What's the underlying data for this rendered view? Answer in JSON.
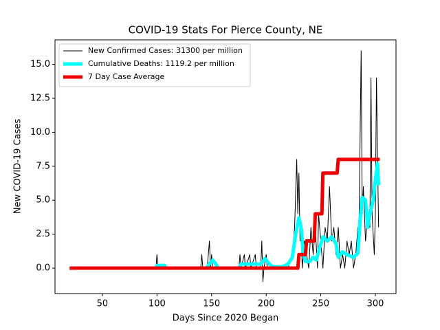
{
  "chart_data": {
    "type": "line",
    "title": "COVID-19 Stats For Pierce County, NE",
    "xlabel": "Days Since 2020 Began",
    "ylabel": "New COVID-19 Cases",
    "xlim": [
      6.6,
      318.9
    ],
    "ylim": [
      -1.87,
      16.8
    ],
    "xticks": [
      50,
      100,
      150,
      200,
      250,
      300
    ],
    "yticks": [
      {
        "value": 0,
        "label": "0.0"
      },
      {
        "value": 2.5,
        "label": "2.5"
      },
      {
        "value": 5,
        "label": "5.0"
      },
      {
        "value": 7.5,
        "label": "7.5"
      },
      {
        "value": 10,
        "label": "10.0"
      },
      {
        "value": 12.5,
        "label": "12.5"
      },
      {
        "value": 15,
        "label": "15.0"
      }
    ],
    "legend": "upper left",
    "series": [
      {
        "name": "New Confirmed Cases: 31300 per million",
        "color": "#000000",
        "width": 1,
        "x": [
          20,
          99,
          100,
          101,
          140,
          141,
          142,
          146,
          147,
          148,
          149,
          150,
          151,
          175,
          176,
          177,
          180,
          181,
          185,
          186,
          190,
          191,
          195,
          196,
          197,
          198,
          200,
          201,
          220,
          224,
          226,
          228,
          229,
          230,
          231,
          232,
          233,
          235,
          237,
          239,
          241,
          243,
          245,
          247,
          248,
          250,
          252,
          254,
          256,
          258,
          260,
          262,
          264,
          266,
          268,
          270,
          272,
          274,
          276,
          278,
          280,
          282,
          284,
          285,
          287,
          288,
          289,
          291,
          293,
          295,
          296,
          297,
          299,
          300,
          301,
          302,
          303
        ],
        "values": [
          0,
          0,
          1,
          0,
          0,
          1,
          0,
          0,
          1,
          2,
          0,
          1,
          0,
          0,
          1,
          0,
          1,
          0,
          1,
          0,
          1,
          0,
          0,
          2,
          -1,
          0,
          1,
          0,
          0,
          1,
          3,
          8,
          4,
          7,
          2,
          3,
          0,
          2,
          1,
          0,
          3,
          1,
          3,
          0,
          4,
          2,
          0,
          3,
          2,
          6,
          2,
          3,
          1,
          3,
          0,
          1,
          0,
          2,
          1,
          2,
          0,
          1,
          3,
          3,
          16,
          4,
          6,
          2,
          4,
          3,
          14,
          4,
          1,
          4,
          14,
          8,
          3
        ]
      },
      {
        "name": "Cumulative Deaths: 1119.2 per million",
        "color": "#00ffff",
        "width": 5,
        "x": [
          20,
          99,
          100,
          107,
          108,
          145,
          148,
          151,
          154,
          156,
          175,
          177,
          195,
          199,
          203,
          206,
          215,
          220,
          224,
          227,
          230,
          232,
          234,
          236,
          240,
          243,
          246,
          249,
          252,
          256,
          260,
          264,
          266,
          270,
          274,
          280,
          284,
          286,
          288,
          291,
          293,
          295,
          298,
          300,
          302,
          303
        ],
        "values": [
          0,
          0,
          0.2,
          0.2,
          0,
          0,
          0.3,
          0.6,
          0.3,
          0,
          0,
          0.3,
          0.3,
          0.7,
          0.3,
          0.1,
          0.1,
          0.3,
          0.8,
          2.5,
          3.7,
          3.0,
          1.0,
          0.5,
          0.5,
          0.8,
          0.6,
          1.5,
          2.3,
          2.0,
          2.3,
          1.8,
          0.8,
          1.2,
          1.0,
          0.8,
          1.1,
          3.5,
          5.2,
          5.0,
          3.0,
          4.0,
          5.0,
          6.5,
          7.7,
          6.1
        ]
      },
      {
        "name": "7 Day Case Average",
        "color": "#ee0000",
        "width": 5,
        "x": [
          20,
          229,
          230,
          236,
          237,
          244,
          245,
          251,
          252,
          265,
          266,
          304
        ],
        "values": [
          0,
          0,
          1,
          1,
          2,
          2,
          4,
          4,
          7,
          7,
          8,
          8
        ]
      }
    ]
  }
}
